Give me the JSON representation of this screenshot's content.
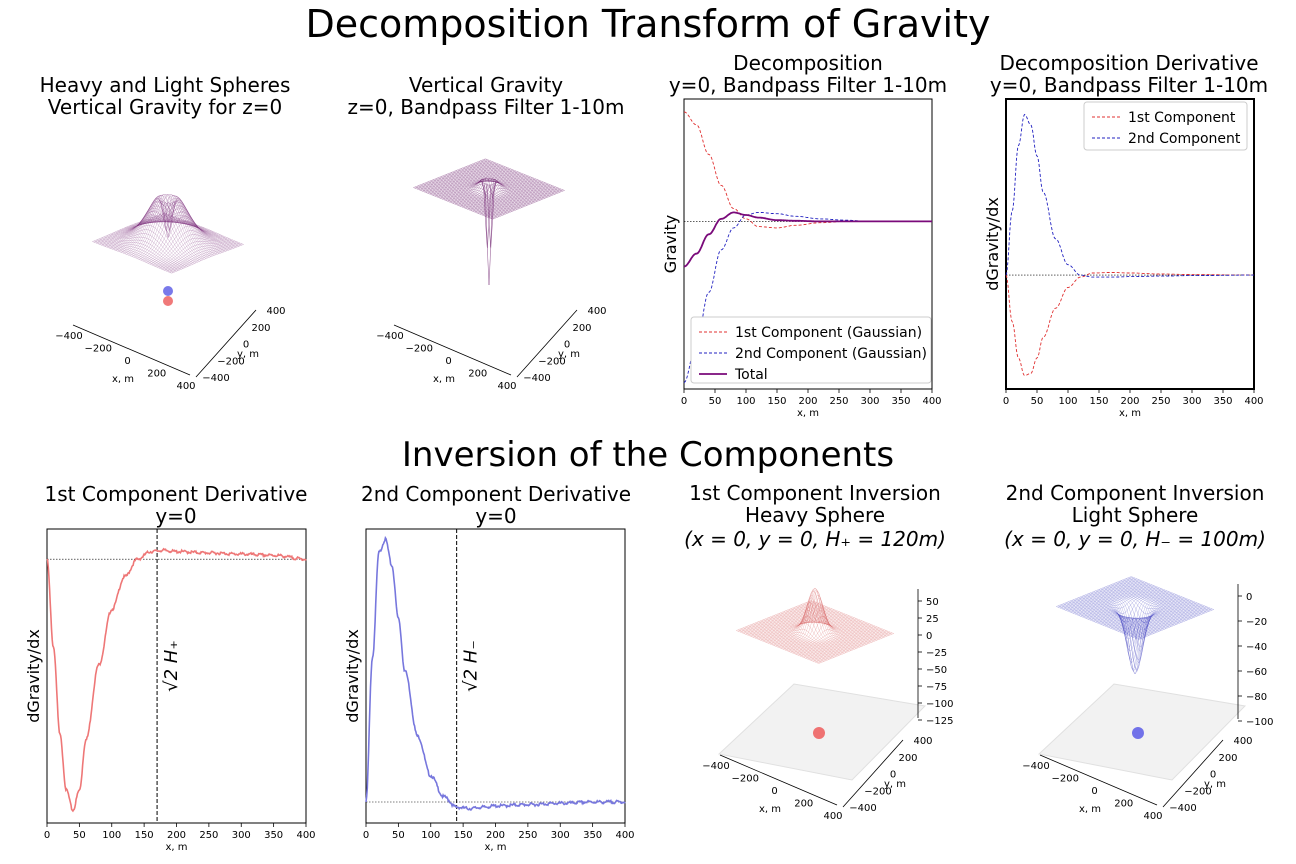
{
  "suptitle_top": "Decomposition Transform of Gravity",
  "suptitle_bottom": "Inversion of the Components",
  "colors": {
    "heavy": "#e05555",
    "light": "#4444cc",
    "total": "#7a0a7a",
    "wire_purple": "#7b2d7b"
  },
  "chart_data": [
    {
      "type": "surface3d",
      "title": [
        "Heavy and Light Spheres",
        "Vertical Gravity for z=0"
      ],
      "xlabel": "x, m",
      "ylabel": "y, m",
      "xticks": [
        "−400",
        "−200",
        "0",
        "200",
        "400"
      ],
      "yticks": [
        "−400",
        "−200",
        "0",
        "200",
        "400"
      ],
      "spheres": [
        {
          "color": "blue",
          "label": "light"
        },
        {
          "color": "red",
          "label": "heavy"
        }
      ]
    },
    {
      "type": "surface3d",
      "title": [
        "Vertical Gravity",
        "z=0, Bandpass Filter 1-10m"
      ],
      "xlabel": "x, m",
      "ylabel": "y, m",
      "xticks": [
        "−400",
        "−200",
        "0",
        "200",
        "400"
      ],
      "yticks": [
        "−400",
        "−200",
        "0",
        "200",
        "400"
      ]
    },
    {
      "type": "line",
      "title": [
        "Decomposition",
        "y=0, Bandpass Filter 1-10m"
      ],
      "xlabel": "x, m",
      "ylabel": "Gravity",
      "xlim": [
        0,
        400
      ],
      "xticks": [
        "0",
        "50",
        "100",
        "150",
        "200",
        "250",
        "300",
        "350",
        "400"
      ],
      "legend": "bottom-right",
      "series": [
        {
          "name": "1st Component (Gaussian)",
          "style": "dashed",
          "color": "red",
          "x": [
            0,
            20,
            40,
            60,
            80,
            100,
            120,
            150,
            180,
            220,
            260,
            300,
            400
          ],
          "y": [
            0.85,
            0.75,
            0.52,
            0.28,
            0.1,
            0.02,
            -0.04,
            -0.05,
            -0.03,
            -0.01,
            0.0,
            0.0,
            0.0
          ]
        },
        {
          "name": "2nd Component (Gaussian)",
          "style": "dashed",
          "color": "blue",
          "x": [
            0,
            20,
            40,
            60,
            80,
            100,
            120,
            150,
            180,
            220,
            260,
            300,
            400
          ],
          "y": [
            -1.25,
            -0.95,
            -0.55,
            -0.22,
            -0.05,
            0.05,
            0.07,
            0.06,
            0.04,
            0.02,
            0.01,
            0.0,
            0.0
          ]
        },
        {
          "name": "Total",
          "style": "solid",
          "color": "purple",
          "x": [
            0,
            20,
            40,
            60,
            80,
            100,
            120,
            150,
            180,
            220,
            260,
            300,
            400
          ],
          "y": [
            -0.35,
            -0.25,
            -0.1,
            0.02,
            0.07,
            0.05,
            0.03,
            0.01,
            0.005,
            0.0,
            0.0,
            0.0,
            0.0
          ]
        }
      ]
    },
    {
      "type": "line",
      "title": [
        "Decomposition Derivative",
        "y=0, Bandpass Filter 1-10m"
      ],
      "xlabel": "x, m",
      "ylabel": "dGravity/dx",
      "xlim": [
        0,
        400
      ],
      "xticks": [
        "0",
        "50",
        "100",
        "150",
        "200",
        "250",
        "300",
        "350",
        "400"
      ],
      "legend": "top-right",
      "series": [
        {
          "name": "1st Component",
          "style": "dashed",
          "color": "red",
          "x": [
            0,
            10,
            20,
            30,
            40,
            50,
            60,
            80,
            100,
            120,
            140,
            170,
            200,
            250,
            300,
            400
          ],
          "y": [
            0.0,
            -0.45,
            -0.8,
            -0.97,
            -0.95,
            -0.8,
            -0.6,
            -0.32,
            -0.12,
            -0.02,
            0.02,
            0.025,
            0.02,
            0.01,
            0.005,
            0.0
          ]
        },
        {
          "name": "2nd Component",
          "style": "dashed",
          "color": "blue",
          "x": [
            0,
            10,
            20,
            30,
            40,
            50,
            60,
            80,
            100,
            120,
            140,
            170,
            200,
            250,
            300,
            400
          ],
          "y": [
            0.0,
            0.62,
            1.25,
            1.55,
            1.45,
            1.15,
            0.8,
            0.35,
            0.1,
            0.0,
            -0.02,
            -0.02,
            -0.015,
            -0.01,
            -0.005,
            0.0
          ]
        }
      ]
    },
    {
      "type": "line",
      "title": [
        "1st Component Derivative",
        "y=0"
      ],
      "xlabel": "x, m",
      "ylabel": "dGravity/dx",
      "xlim": [
        0,
        400
      ],
      "xticks": [
        "0",
        "50",
        "100",
        "150",
        "200",
        "250",
        "300",
        "350",
        "400"
      ],
      "vline_label": "√2 H₊",
      "vline_x": 170,
      "series": [
        {
          "name": "",
          "color": "red",
          "x": [
            0,
            10,
            20,
            30,
            40,
            50,
            60,
            80,
            100,
            120,
            140,
            160,
            180,
            200,
            250,
            300,
            350,
            400
          ],
          "y": [
            0.0,
            -0.35,
            -0.7,
            -0.92,
            -1.0,
            -0.92,
            -0.72,
            -0.42,
            -0.2,
            -0.07,
            0.0,
            0.03,
            0.035,
            0.03,
            0.025,
            0.02,
            0.015,
            0.0
          ]
        }
      ]
    },
    {
      "type": "line",
      "title": [
        "2nd Component Derivative",
        "y=0"
      ],
      "xlabel": "x, m",
      "ylabel": "dGravity/dx",
      "xlim": [
        0,
        400
      ],
      "xticks": [
        "0",
        "50",
        "100",
        "150",
        "200",
        "250",
        "300",
        "350",
        "400"
      ],
      "vline_label": "√2 H₋",
      "vline_x": 140,
      "series": [
        {
          "name": "",
          "color": "blue",
          "x": [
            0,
            10,
            20,
            30,
            40,
            50,
            60,
            80,
            100,
            120,
            140,
            160,
            180,
            200,
            250,
            300,
            350,
            400
          ],
          "y": [
            0.0,
            0.55,
            0.95,
            1.0,
            0.9,
            0.7,
            0.5,
            0.25,
            0.1,
            0.02,
            -0.02,
            -0.025,
            -0.02,
            -0.015,
            -0.01,
            -0.005,
            0.0,
            0.0
          ]
        }
      ]
    },
    {
      "type": "surface3d",
      "title": [
        "1st Component Inversion",
        "Heavy Sphere",
        "(x = 0, y = 0, H₊ = 120m)"
      ],
      "xlabel": "x, m",
      "ylabel": "y, m",
      "xticks": [
        "−400",
        "−200",
        "0",
        "200",
        "400"
      ],
      "yticks": [
        "−400",
        "−200",
        "0",
        "200",
        "400"
      ],
      "zticks": [
        "50",
        "25",
        "0",
        "−25",
        "−50",
        "−75",
        "−100",
        "−125"
      ]
    },
    {
      "type": "surface3d",
      "title": [
        "2nd Component Inversion",
        "Light Sphere",
        "(x = 0, y = 0, H₋ = 100m)"
      ],
      "xlabel": "x, m",
      "ylabel": "y, m",
      "xticks": [
        "−400",
        "−200",
        "0",
        "200",
        "400"
      ],
      "yticks": [
        "−400",
        "−200",
        "0",
        "200",
        "400"
      ],
      "zticks": [
        "0",
        "−20",
        "−40",
        "−60",
        "−80",
        "−100"
      ]
    }
  ]
}
